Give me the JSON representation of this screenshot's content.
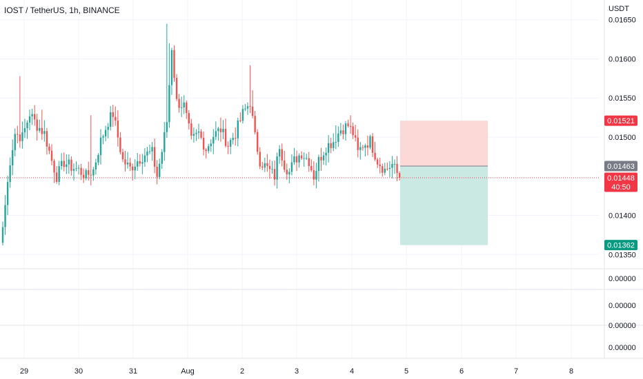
{
  "header": {
    "title": "IOST / TetherUS, 1h, BINANCE"
  },
  "price_axis": {
    "currency": "USDT",
    "ticks": [
      "0.01650",
      "0.01600",
      "0.01550",
      "0.01500",
      "0.01400",
      "0.01350"
    ]
  },
  "sub_pane_axis": {
    "ticks": [
      "0.00000",
      "0.00000",
      "0.00000",
      "0.00000"
    ]
  },
  "time_axis": {
    "ticks": [
      "29",
      "30",
      "31",
      "Aug",
      "2",
      "3",
      "4",
      "5",
      "6",
      "7",
      "8"
    ]
  },
  "price_badges": {
    "stop": {
      "label": "0.01521",
      "color": "#f23645"
    },
    "entry": {
      "label": "0.01463",
      "color": "#787b86"
    },
    "last": {
      "label": "0.01448",
      "countdown": "40:50",
      "color": "#f23645"
    },
    "target": {
      "label": "0.01362",
      "color": "#089981"
    }
  },
  "colors": {
    "up": "#26a69a",
    "down": "#ef5350",
    "risk_zone": "#fcd9d7",
    "reward_zone": "#cbe9e3"
  },
  "chart_data": {
    "type": "candlestick",
    "title": "IOST / TetherUS, 1h, BINANCE",
    "ylabel": "USDT",
    "ylim": [
      0.0133,
      0.0167
    ],
    "x_categories": [
      "29",
      "30",
      "31",
      "Aug",
      "2",
      "3",
      "4",
      "5",
      "6",
      "7",
      "8"
    ],
    "anchors": [
      {
        "i": 0,
        "c": 0.01385
      },
      {
        "i": 3,
        "c": 0.0147
      },
      {
        "i": 5,
        "c": 0.01505
      },
      {
        "i": 8,
        "c": 0.015
      },
      {
        "i": 11,
        "c": 0.0153
      },
      {
        "i": 14,
        "c": 0.01515
      },
      {
        "i": 17,
        "c": 0.01505
      },
      {
        "i": 20,
        "c": 0.0147
      },
      {
        "i": 22,
        "c": 0.0145
      },
      {
        "i": 25,
        "c": 0.01468
      },
      {
        "i": 28,
        "c": 0.01462
      },
      {
        "i": 31,
        "c": 0.01458
      },
      {
        "i": 34,
        "c": 0.0145
      },
      {
        "i": 37,
        "c": 0.01458
      },
      {
        "i": 40,
        "c": 0.01495
      },
      {
        "i": 43,
        "c": 0.0152
      },
      {
        "i": 45,
        "c": 0.0153
      },
      {
        "i": 47,
        "c": 0.015
      },
      {
        "i": 49,
        "c": 0.0147
      },
      {
        "i": 52,
        "c": 0.0146
      },
      {
        "i": 55,
        "c": 0.0147
      },
      {
        "i": 58,
        "c": 0.01478
      },
      {
        "i": 61,
        "c": 0.0148
      },
      {
        "i": 63,
        "c": 0.0145
      },
      {
        "i": 65,
        "c": 0.01482
      },
      {
        "i": 67,
        "c": 0.0152
      },
      {
        "i": 69,
        "c": 0.01615
      },
      {
        "i": 71,
        "c": 0.01545
      },
      {
        "i": 74,
        "c": 0.0154
      },
      {
        "i": 77,
        "c": 0.01495
      },
      {
        "i": 80,
        "c": 0.01505
      },
      {
        "i": 83,
        "c": 0.01485
      },
      {
        "i": 86,
        "c": 0.01502
      },
      {
        "i": 89,
        "c": 0.0151
      },
      {
        "i": 92,
        "c": 0.0149
      },
      {
        "i": 95,
        "c": 0.01505
      },
      {
        "i": 98,
        "c": 0.0153
      },
      {
        "i": 101,
        "c": 0.01545
      },
      {
        "i": 103,
        "c": 0.015
      },
      {
        "i": 105,
        "c": 0.0147
      },
      {
        "i": 108,
        "c": 0.0146
      },
      {
        "i": 111,
        "c": 0.0145
      },
      {
        "i": 113,
        "c": 0.0149
      },
      {
        "i": 115,
        "c": 0.01465
      },
      {
        "i": 117,
        "c": 0.01455
      },
      {
        "i": 119,
        "c": 0.0147
      },
      {
        "i": 122,
        "c": 0.0148
      },
      {
        "i": 125,
        "c": 0.0147
      },
      {
        "i": 127,
        "c": 0.0145
      },
      {
        "i": 129,
        "c": 0.0147
      },
      {
        "i": 132,
        "c": 0.01488
      },
      {
        "i": 135,
        "c": 0.01495
      },
      {
        "i": 138,
        "c": 0.0151
      },
      {
        "i": 141,
        "c": 0.01515
      },
      {
        "i": 143,
        "c": 0.01505
      },
      {
        "i": 145,
        "c": 0.0148
      },
      {
        "i": 147,
        "c": 0.0149
      },
      {
        "i": 150,
        "c": 0.01495
      },
      {
        "i": 153,
        "c": 0.0147
      },
      {
        "i": 156,
        "c": 0.01458
      },
      {
        "i": 159,
        "c": 0.01465
      },
      {
        "i": 162,
        "c": 0.01448
      }
    ],
    "wick_spikes": [
      {
        "i": 7,
        "h": 0.01578
      },
      {
        "i": 16,
        "h": 0.01535
      },
      {
        "i": 67,
        "h": 0.01645
      },
      {
        "i": 68,
        "h": 0.0162
      },
      {
        "i": 101,
        "h": 0.01592
      },
      {
        "i": 102,
        "h": 0.0156
      },
      {
        "i": 36,
        "h": 0.01528
      },
      {
        "i": 136,
        "h": 0.01515
      }
    ],
    "last_price": 0.01448,
    "position": {
      "type": "short",
      "entry": 0.01463,
      "stop_loss": 0.01521,
      "take_profit": 0.01362
    }
  }
}
